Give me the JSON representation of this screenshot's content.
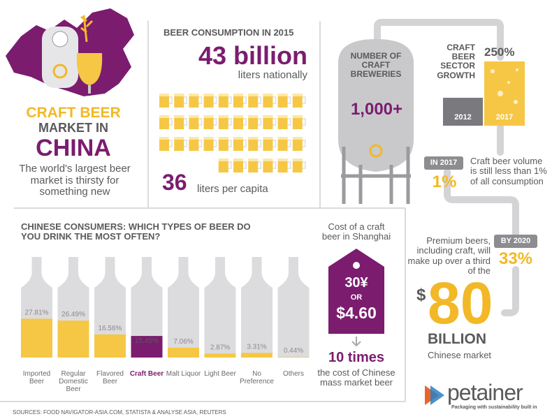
{
  "header": {
    "line1": "CRAFT BEER",
    "line2": "MARKET IN",
    "line3": "CHINA",
    "subtitle": "The world's largest beer market is thirsty for something new"
  },
  "consumption": {
    "heading": "BEER CONSUMPTION IN 2015",
    "national": "43 billion",
    "national_unit": "liters nationally",
    "per_capita": 36,
    "per_capita_unit": "liters per capita"
  },
  "breweries": {
    "label": "NUMBER OF CRAFT BREWERIES",
    "value": "1,000+"
  },
  "growth": {
    "label": "CRAFT BEER SECTOR GROWTH",
    "value": "250%",
    "years": [
      "2012",
      "2017"
    ]
  },
  "share": {
    "tag": "IN 2017",
    "value": "1%",
    "text": "Craft beer volume is still less than 1% of all consumption"
  },
  "forecast": {
    "tag": "BY 2020",
    "value": "33%",
    "text": "Premium beers, including craft, will make up over a third of the",
    "currency": "$",
    "amount": "80",
    "unit": "BILLION",
    "caption": "Chinese market"
  },
  "survey": {
    "title": "CHINESE CONSUMERS: WHICH TYPES OF BEER DO YOU DRINK THE MOST OFTEN?",
    "categories": [
      "Imported Beer",
      "Regular Domestic Beer",
      "Flavored Beer",
      "Craft Beer",
      "Malt Liquor",
      "Light Beer",
      "No Preference",
      "Others"
    ],
    "values": [
      27.81,
      26.49,
      16.56,
      15.45,
      7.06,
      2.87,
      3.31,
      0.44
    ],
    "value_labels": [
      "27.81%",
      "26.49%",
      "16.56%",
      "15.45%",
      "7.06%",
      "2.87%",
      "3.31%",
      "0.44%"
    ],
    "bar_colors": [
      "#f6c744",
      "#f6c744",
      "#f6c744",
      "#7b1c6f",
      "#f6c744",
      "#f6c744",
      "#f6c744",
      "#f6c744"
    ],
    "color": "#f6c744"
  },
  "price": {
    "caption": "Cost of a craft beer in Shanghai",
    "local": "30¥",
    "or": "OR",
    "usd": "$4.60",
    "multiple": "10 times",
    "comparison": "the cost of Chinese mass market beer"
  },
  "sources": "SOURCES: FOOD NAVIGATOR-ASIA.COM, STATISTA & ANALYSE ASIA, REUTERS",
  "brand": {
    "name": "petainer",
    "tagline": "Packaging with sustainability built in"
  }
}
